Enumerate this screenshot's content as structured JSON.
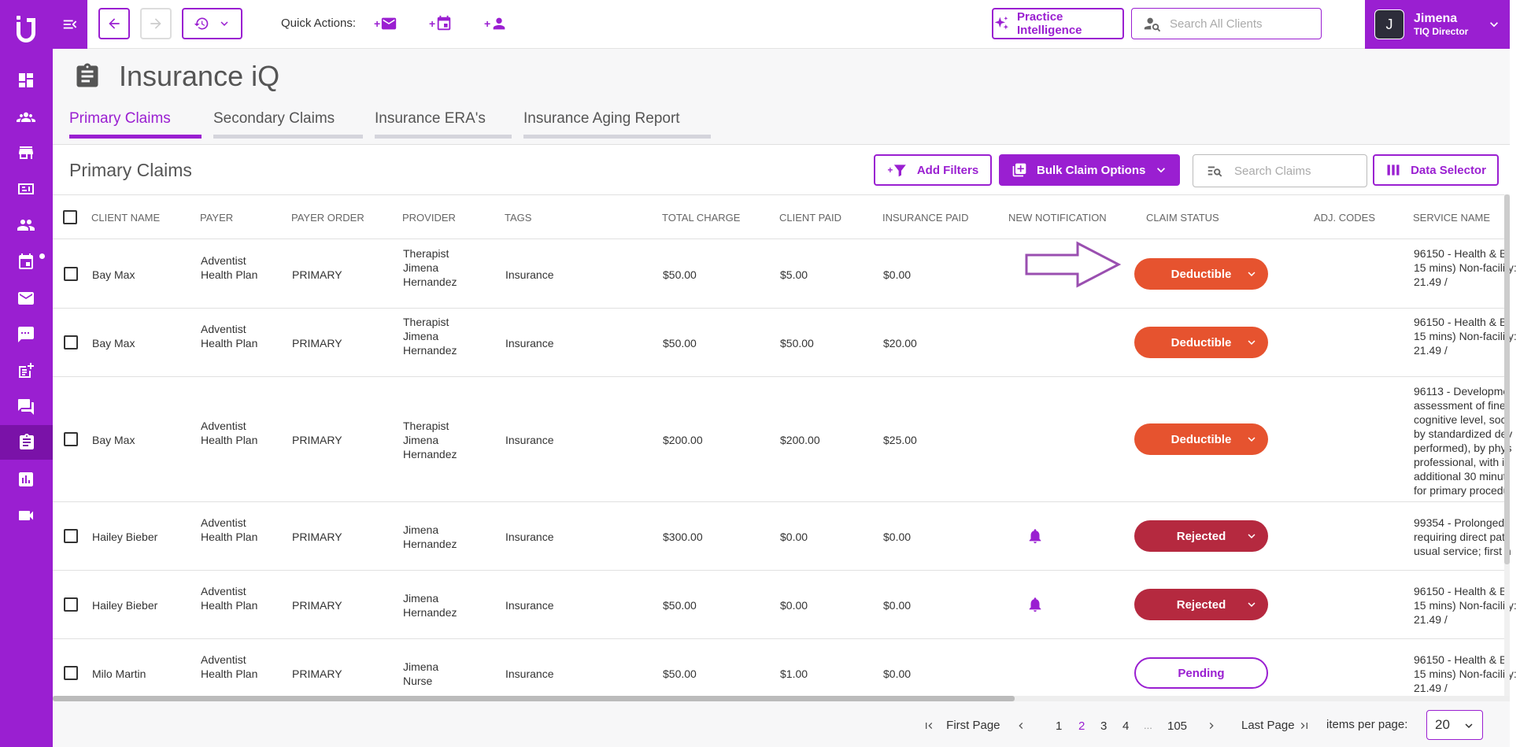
{
  "app": {
    "accent": "#9a1fd1",
    "rail_icons": [
      "dashboard-icon",
      "groups-icon",
      "store-icon",
      "billing-icon",
      "clients-icon",
      "calendar-icon",
      "mail-icon",
      "chat-icon",
      "notes-add-icon",
      "forum-icon",
      "clipboard-icon",
      "report-icon",
      "video-icon"
    ]
  },
  "topbar": {
    "quick_actions_label": "Quick Actions:",
    "quick_actions": [
      {
        "icon": "mail-icon",
        "prefix": "+"
      },
      {
        "icon": "calendar-add-icon",
        "prefix": "+"
      },
      {
        "icon": "person-add-icon",
        "prefix": "+"
      }
    ],
    "practice_intelligence_label": "Practice Intelligence",
    "search_placeholder": "Search All Clients",
    "user": {
      "initial": "J",
      "name": "Jimena",
      "role": "TIQ Director"
    }
  },
  "page": {
    "title": "Insurance iQ",
    "tabs": [
      {
        "label": "Primary Claims",
        "active": true
      },
      {
        "label": "Secondary Claims",
        "active": false
      },
      {
        "label": "Insurance ERA's",
        "active": false
      },
      {
        "label": "Insurance Aging Report",
        "active": false
      }
    ]
  },
  "section": {
    "title": "Primary Claims",
    "add_filters_label": "Add Filters",
    "add_filters_prefix": "+",
    "bulk_label": "Bulk Claim Options",
    "search_placeholder": "Search Claims",
    "data_selector_label": "Data Selector"
  },
  "table": {
    "columns": [
      "Client Name",
      "Payer",
      "Payer Order",
      "Provider",
      "Tags",
      "Total Charge",
      "Client Paid",
      "Insurance Paid",
      "New Notification",
      "Claim Status",
      "Adj. Codes",
      "Service Name"
    ],
    "status_colors": {
      "Deductible": "#e6532f",
      "Rejected": "#b5293f",
      "Pending": "#ffffff"
    },
    "rows": [
      {
        "client": "Bay Max",
        "payer": "Adventist Health Plan",
        "order": "PRIMARY",
        "provider": "Therapist Jimena Hernandez",
        "tags": "Insurance",
        "total": "$50.00",
        "client_paid": "$5.00",
        "ins_paid": "$0.00",
        "notification": false,
        "status": "Deductible",
        "adj": "",
        "service": "96150 - Health & B 15 mins) Non-facility: 21.49 /"
      },
      {
        "client": "Bay Max",
        "payer": "Adventist Health Plan",
        "order": "PRIMARY",
        "provider": "Therapist Jimena Hernandez",
        "tags": "Insurance",
        "total": "$50.00",
        "client_paid": "$50.00",
        "ins_paid": "$20.00",
        "notification": false,
        "status": "Deductible",
        "adj": "",
        "service": "96150 - Health & B 15 mins) Non-facility: 21.49 /"
      },
      {
        "client": "Bay Max",
        "payer": "Adventist Health Plan",
        "order": "PRIMARY",
        "provider": "Therapist Jimena Hernandez",
        "tags": "Insurance",
        "total": "$200.00",
        "client_paid": "$200.00",
        "ins_paid": "$25.00",
        "notification": false,
        "status": "Deductible",
        "adj": "",
        "service": "96113 - Developme assessment of fine cognitive level, soci by standardized dev performed), by phys professional, with in additional 30 minut for primary procedu"
      },
      {
        "client": "Hailey Bieber",
        "payer": "Adventist Health Plan",
        "order": "PRIMARY",
        "provider": "Jimena Hernandez",
        "tags": "Insurance",
        "total": "$300.00",
        "client_paid": "$0.00",
        "ins_paid": "$0.00",
        "notification": true,
        "status": "Rejected",
        "adj": "",
        "service": "99354 - Prolonged requiring direct pati usual service; first h"
      },
      {
        "client": "Hailey Bieber",
        "payer": "Adventist Health Plan",
        "order": "PRIMARY",
        "provider": "Jimena Hernandez",
        "tags": "Insurance",
        "total": "$50.00",
        "client_paid": "$0.00",
        "ins_paid": "$0.00",
        "notification": true,
        "status": "Rejected",
        "adj": "",
        "service": "96150 - Health & B 15 mins) Non-facility: 21.49 /"
      },
      {
        "client": "Milo Martin",
        "payer": "Adventist Health Plan",
        "order": "PRIMARY",
        "provider": "Jimena Nurse",
        "tags": "Insurance",
        "total": "$50.00",
        "client_paid": "$1.00",
        "ins_paid": "$0.00",
        "notification": false,
        "status": "Pending",
        "adj": "",
        "service": "96150 - Health & B 15 mins) Non-facility: 21.49 /"
      }
    ]
  },
  "pagination": {
    "first_label": "First Page",
    "last_label": "Last Page",
    "pages": [
      "1",
      "2",
      "3",
      "4",
      "...",
      "105"
    ],
    "current": "2",
    "items_per_page_label": "items per page:",
    "items_per_page": "20"
  }
}
